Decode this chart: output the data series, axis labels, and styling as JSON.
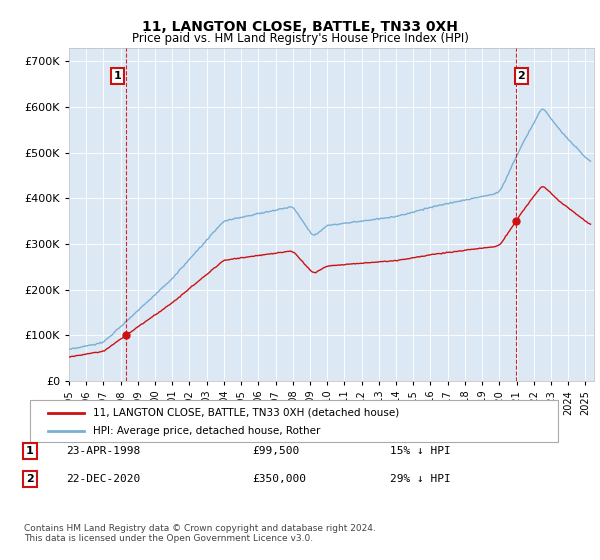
{
  "title": "11, LANGTON CLOSE, BATTLE, TN33 0XH",
  "subtitle": "Price paid vs. HM Land Registry's House Price Index (HPI)",
  "hpi_label": "HPI: Average price, detached house, Rother",
  "property_label": "11, LANGTON CLOSE, BATTLE, TN33 0XH (detached house)",
  "hpi_color": "#7aafd4",
  "property_color": "#cc1111",
  "vline_color": "#cc1111",
  "bg_color": "#dce9f5",
  "annotation1_date": "23-APR-1998",
  "annotation1_price": "£99,500",
  "annotation1_pct": "15% ↓ HPI",
  "annotation2_date": "22-DEC-2020",
  "annotation2_price": "£350,000",
  "annotation2_pct": "29% ↓ HPI",
  "purchase1_year": 1998.3,
  "purchase1_price": 99500,
  "purchase2_year": 2020.97,
  "purchase2_price": 350000,
  "ylim": [
    0,
    730000
  ],
  "xlim": [
    1995,
    2025.5
  ],
  "footer": "Contains HM Land Registry data © Crown copyright and database right 2024.\nThis data is licensed under the Open Government Licence v3.0."
}
